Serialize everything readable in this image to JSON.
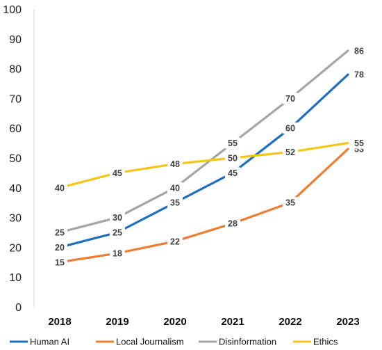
{
  "chart_data": {
    "type": "line",
    "title": "",
    "xlabel": "",
    "ylabel": "",
    "categories": [
      "2018",
      "2019",
      "2020",
      "2021",
      "2022",
      "2023"
    ],
    "ylim": [
      0,
      100
    ],
    "yticks": [
      0,
      10,
      20,
      30,
      40,
      50,
      60,
      70,
      80,
      90,
      100
    ],
    "grid": false,
    "legend": "bottom",
    "series": [
      {
        "name": "Human AI",
        "color": "#1F6FBF",
        "values": [
          20,
          25,
          35,
          45,
          60,
          78
        ]
      },
      {
        "name": "Local Journalism",
        "color": "#ED7D31",
        "values": [
          15,
          18,
          22,
          28,
          35,
          53
        ]
      },
      {
        "name": "Disinformation",
        "color": "#A5A5A5",
        "values": [
          25,
          30,
          40,
          55,
          70,
          86
        ]
      },
      {
        "name": "Ethics",
        "color": "#F5C518",
        "values": [
          40,
          45,
          48,
          50,
          52,
          55
        ]
      }
    ]
  }
}
